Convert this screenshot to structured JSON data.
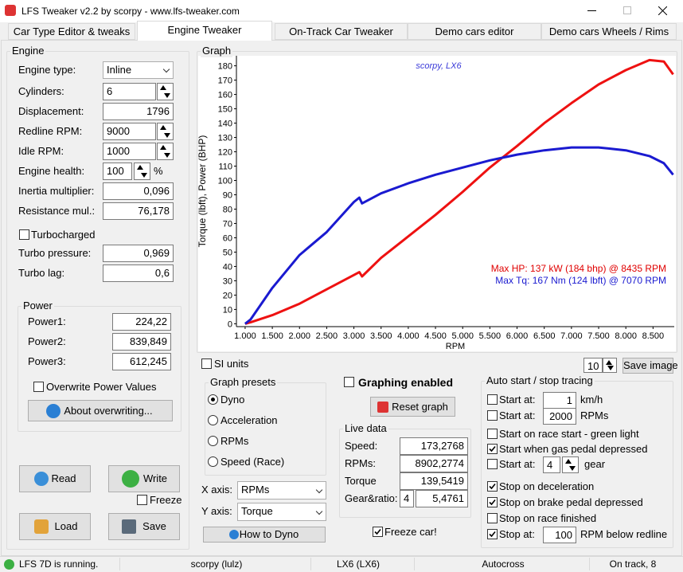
{
  "window": {
    "title": "LFS Tweaker v2.2 by scorpy  -  www.lfs-tweaker.com"
  },
  "tabs": {
    "items": [
      "Car Type Editor & tweaks",
      "Engine Tweaker",
      "On-Track Car Tweaker",
      "Demo cars editor",
      "Demo cars Wheels / Rims"
    ],
    "active": 1
  },
  "engine": {
    "title": "Engine",
    "fields": [
      {
        "label": "Engine type:",
        "value": "Inline"
      },
      {
        "label": "Cylinders:",
        "value": "6"
      },
      {
        "label": "Displacement:",
        "value": "1796"
      },
      {
        "label": "Redline RPM:",
        "value": "9000"
      },
      {
        "label": "Idle RPM:",
        "value": "1000"
      },
      {
        "label": "Engine health:",
        "value": "100",
        "unit": "%"
      },
      {
        "label": "Inertia multiplier:",
        "value": "0,096"
      },
      {
        "label": "Resistance mul.:",
        "value": "76,178"
      }
    ],
    "turbocharged": {
      "label": "Turbocharged",
      "checked": false
    },
    "turbo_fields": [
      {
        "label": "Turbo pressure:",
        "value": "0,969"
      },
      {
        "label": "Turbo lag:",
        "value": "0,6"
      }
    ]
  },
  "power": {
    "title": "Power",
    "fields": [
      {
        "label": "Power1:",
        "value": "224,22"
      },
      {
        "label": "Power2:",
        "value": "839,849"
      },
      {
        "label": "Power3:",
        "value": "612,245"
      }
    ],
    "overwrite": {
      "label": "Overwrite Power Values",
      "checked": false
    },
    "about_button": "About overwriting..."
  },
  "buttons": {
    "read": "Read",
    "write": "Write",
    "freeze": {
      "label": "Freeze",
      "checked": false
    },
    "load": "Load",
    "save": "Save"
  },
  "graph": {
    "title": "Graph",
    "si_units": {
      "label": "SI units",
      "checked": false
    },
    "image_count": "10",
    "save_image": "Save image"
  },
  "chart_data": {
    "type": "line",
    "y_label": "Torque (lbft), Power (BHP)",
    "x_label": "RPM",
    "watermark": "scorpy, LX6",
    "annotations": [
      {
        "text": "Max HP: 137 kW (184 bhp) @ 8435 RPM",
        "color": "#e00000"
      },
      {
        "text": "Max Tq: 167 Nm (124 lbft) @ 7070 RPM",
        "color": "#1a1ad0"
      }
    ],
    "x": [
      1000,
      1100,
      1500,
      2000,
      2500,
      3000,
      3100,
      3150,
      3500,
      4000,
      4500,
      5000,
      5500,
      6000,
      6500,
      7000,
      7500,
      8000,
      8435,
      8700,
      8870
    ],
    "series": [
      {
        "color": "#ee1111",
        "values": [
          0,
          1,
          6,
          14,
          24,
          34,
          36,
          33,
          46,
          61,
          76,
          92,
          109,
          124,
          140,
          154,
          167,
          177,
          184,
          183,
          174
        ]
      },
      {
        "color": "#1a1ad0",
        "values": [
          0,
          3,
          25,
          48,
          64,
          85,
          88,
          84,
          91,
          98,
          104,
          109,
          114,
          118,
          121,
          123,
          123,
          121,
          117,
          112,
          104
        ]
      }
    ],
    "xlim": [
      840,
      8890
    ],
    "ylim": [
      -2,
      187
    ],
    "xticks": [
      {
        "value": 1000,
        "label": "1.000"
      },
      {
        "value": 1500,
        "label": "1.500"
      },
      {
        "value": 2000,
        "label": "2.000"
      },
      {
        "value": 2500,
        "label": "2.500"
      },
      {
        "value": 3000,
        "label": "3.000"
      },
      {
        "value": 3500,
        "label": "3.500"
      },
      {
        "value": 4000,
        "label": "4.000"
      },
      {
        "value": 4500,
        "label": "4.500"
      },
      {
        "value": 5000,
        "label": "5.000"
      },
      {
        "value": 5500,
        "label": "5.500"
      },
      {
        "value": 6000,
        "label": "6.000"
      },
      {
        "value": 6500,
        "label": "6.500"
      },
      {
        "value": 7000,
        "label": "7.000"
      },
      {
        "value": 7500,
        "label": "7.500"
      },
      {
        "value": 8000,
        "label": "8.000"
      },
      {
        "value": 8500,
        "label": "8.500"
      }
    ],
    "yticks": [
      0,
      10,
      20,
      30,
      40,
      50,
      60,
      70,
      80,
      90,
      100,
      110,
      120,
      130,
      140,
      150,
      160,
      170,
      180
    ],
    "grid": false
  },
  "graph_presets": {
    "title": "Graph presets",
    "options": [
      "Dyno",
      "Acceleration",
      "RPMs",
      "Speed (Race)"
    ],
    "selected": 0
  },
  "axes": {
    "x_label": "X axis:",
    "x_value": "RPMs",
    "y_label": "Y axis:",
    "y_value": "Torque",
    "how_to": "How to Dyno"
  },
  "graphing": {
    "enabled": {
      "label": "Graphing enabled",
      "checked": false
    },
    "reset": "Reset graph"
  },
  "live_data": {
    "title": "Live data",
    "rows": [
      {
        "label": "Speed:",
        "value": "173,2768"
      },
      {
        "label": "RPMs:",
        "value": "8902,2774"
      },
      {
        "label": "Torque",
        "value": "139,5419"
      }
    ],
    "gear": {
      "label": "Gear&ratio:",
      "gear": "4",
      "ratio": "5,4761"
    },
    "freeze_car": {
      "label": "Freeze car!",
      "checked": true
    }
  },
  "auto_tracing": {
    "title": "Auto start / stop tracing",
    "items": [
      {
        "label": "Start at:",
        "value": "1",
        "unit": "km/h",
        "checked": false
      },
      {
        "label": "Start at:",
        "value": "2000",
        "unit": "RPMs",
        "checked": false
      },
      {
        "label": "Start on race start - green light",
        "checked": false
      },
      {
        "label": "Start when gas pedal depressed",
        "checked": true
      },
      {
        "label": "Start at:",
        "value": "4",
        "unit": "gear",
        "checked": false
      },
      {
        "label": "Stop on deceleration",
        "checked": true
      },
      {
        "label": "Stop on brake pedal depressed",
        "checked": true
      },
      {
        "label": "Stop on race finished",
        "checked": false
      },
      {
        "label": "Stop at:",
        "value": "100",
        "unit": "RPM below redline",
        "checked": true
      }
    ]
  },
  "status_bar": [
    "LFS 7D is running.",
    "scorpy (lulz)",
    "LX6 (LX6)",
    "Autocross",
    "On track, 8"
  ]
}
